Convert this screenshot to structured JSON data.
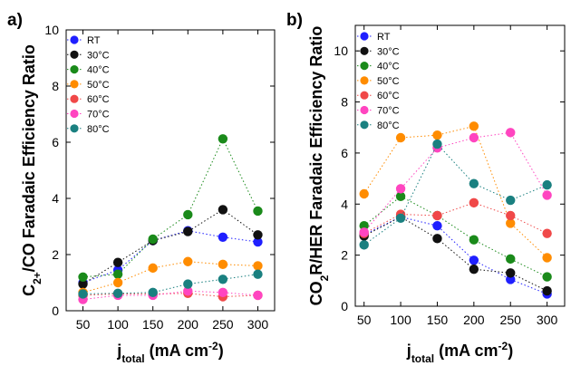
{
  "chart_data": [
    {
      "type": "line",
      "panel_label": "a)",
      "ylabel_parts": [
        "C",
        "2+",
        "/CO  Faradaic Efficiency Ratio"
      ],
      "xlabel_parts": [
        "j",
        "total",
        " (mA cm",
        "-2",
        ")"
      ],
      "x": [
        50,
        100,
        150,
        200,
        250,
        300
      ],
      "x_ticks": [
        "50",
        "100",
        "150",
        "200",
        "250",
        "300"
      ],
      "y_ticks": [
        "0",
        "2",
        "4",
        "6",
        "8",
        "10"
      ],
      "ylim": [
        0,
        10
      ],
      "line_style": "dotted",
      "legend_position": "top-left",
      "series": [
        {
          "name": "RT",
          "color": "#1f1fff",
          "values": [
            1.0,
            1.45,
            2.5,
            2.85,
            2.62,
            2.45
          ]
        },
        {
          "name": "30°C",
          "color": "#111111",
          "values": [
            0.95,
            1.72,
            2.5,
            2.82,
            3.6,
            2.7
          ]
        },
        {
          "name": "40°C",
          "color": "#1a8a1a",
          "values": [
            1.2,
            1.3,
            2.55,
            3.42,
            6.12,
            3.55
          ]
        },
        {
          "name": "50°C",
          "color": "#ff8c00",
          "values": [
            0.65,
            1.0,
            1.52,
            1.75,
            1.65,
            1.6
          ]
        },
        {
          "name": "60°C",
          "color": "#f04848",
          "values": [
            0.55,
            0.6,
            0.6,
            0.62,
            0.5,
            0.55
          ]
        },
        {
          "name": "70°C",
          "color": "#ff45c0",
          "values": [
            0.4,
            0.55,
            0.55,
            0.7,
            0.65,
            0.55
          ]
        },
        {
          "name": "80°C",
          "color": "#1a8080",
          "values": [
            0.6,
            0.62,
            0.65,
            0.95,
            1.12,
            1.3
          ]
        }
      ]
    },
    {
      "type": "line",
      "panel_label": "b)",
      "ylabel_parts": [
        "CO",
        "2",
        "R/HER  Faradaic Efficiency Ratio"
      ],
      "xlabel_parts": [
        "j",
        "total",
        " (mA cm",
        "-2",
        ")"
      ],
      "x": [
        50,
        100,
        150,
        200,
        250,
        300
      ],
      "x_ticks": [
        "50",
        "100",
        "150",
        "200",
        "250",
        "300"
      ],
      "y_ticks": [
        "0",
        "2",
        "4",
        "6",
        "8",
        "10"
      ],
      "ylim": [
        0,
        11
      ],
      "line_style": "dotted",
      "legend_position": "top-left",
      "series": [
        {
          "name": "RT",
          "color": "#1f1fff",
          "values": [
            2.8,
            3.5,
            3.15,
            1.8,
            1.05,
            0.48
          ]
        },
        {
          "name": "30°C",
          "color": "#111111",
          "values": [
            2.75,
            3.5,
            2.65,
            1.45,
            1.3,
            0.6
          ]
        },
        {
          "name": "40°C",
          "color": "#1a8a1a",
          "values": [
            3.15,
            4.3,
            3.55,
            2.6,
            1.85,
            1.15
          ]
        },
        {
          "name": "50°C",
          "color": "#ff8c00",
          "values": [
            4.4,
            6.6,
            6.7,
            7.05,
            3.25,
            1.9
          ]
        },
        {
          "name": "60°C",
          "color": "#f04848",
          "values": [
            2.85,
            3.6,
            3.55,
            4.05,
            3.55,
            2.85
          ]
        },
        {
          "name": "70°C",
          "color": "#ff45c0",
          "values": [
            2.9,
            4.6,
            6.2,
            6.6,
            6.8,
            4.35
          ]
        },
        {
          "name": "80°C",
          "color": "#1a8080",
          "values": [
            2.4,
            3.45,
            6.35,
            4.8,
            4.15,
            4.75
          ]
        }
      ]
    }
  ]
}
